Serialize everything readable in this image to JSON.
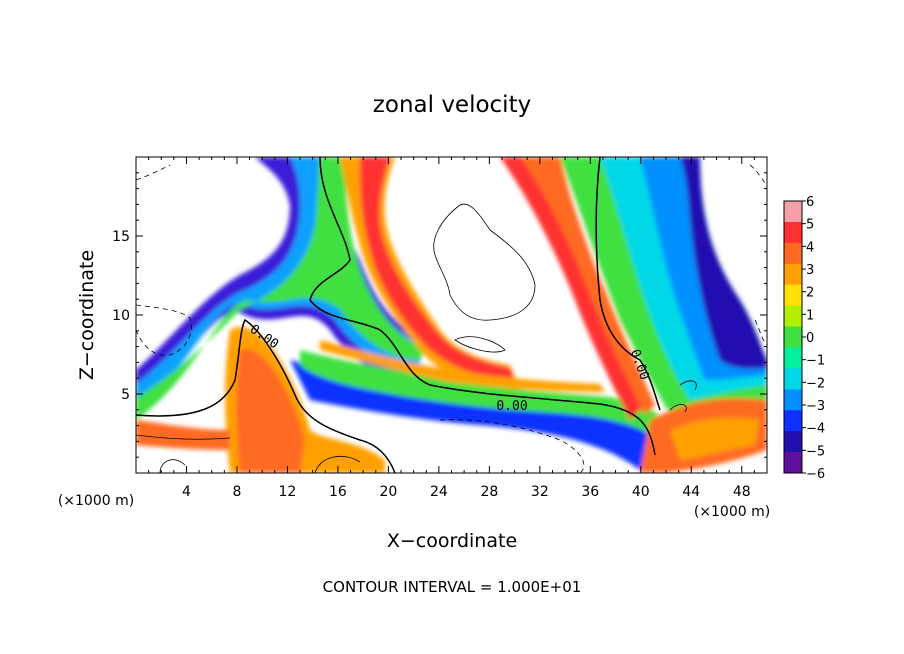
{
  "chart_data": {
    "type": "heatmap",
    "title": "zonal velocity",
    "xlabel": "X−coordinate",
    "ylabel": "Z−coordinate",
    "x_unit_left": "(×1000 m)",
    "x_unit_right": "(×1000 m)",
    "xlim": [
      0,
      50
    ],
    "ylim": [
      0,
      20
    ],
    "x_ticks": [
      4,
      8,
      12,
      16,
      20,
      24,
      28,
      32,
      36,
      40,
      44,
      48
    ],
    "x_tick_labels": [
      "4",
      "8",
      "12",
      "16",
      "20",
      "24",
      "28",
      "32",
      "36",
      "40",
      "44",
      "48"
    ],
    "y_ticks": [
      5,
      10,
      15
    ],
    "y_tick_labels": [
      "5",
      "10",
      "15"
    ],
    "colorbar": {
      "values": [
        6,
        5,
        4,
        3,
        2,
        1,
        0,
        -1,
        -2,
        -3,
        -4,
        -5,
        -6
      ],
      "labels": [
        "6",
        "5",
        "4",
        "3",
        "2",
        "1",
        "0",
        "−1",
        "−2",
        "−3",
        "−4",
        "−5",
        "−6"
      ],
      "colors": [
        "#f4a0a8",
        "#ff3030",
        "#ff6a20",
        "#ffa000",
        "#ffe000",
        "#b0f000",
        "#40e040",
        "#00f0a0",
        "#00d8e8",
        "#0090ff",
        "#1030ff",
        "#2010b0",
        "#6010a0"
      ]
    },
    "contour_labels": [
      "0.00",
      "0.00",
      "0.00"
    ],
    "footer": "CONTOUR INTERVAL = 1.000E+01"
  }
}
